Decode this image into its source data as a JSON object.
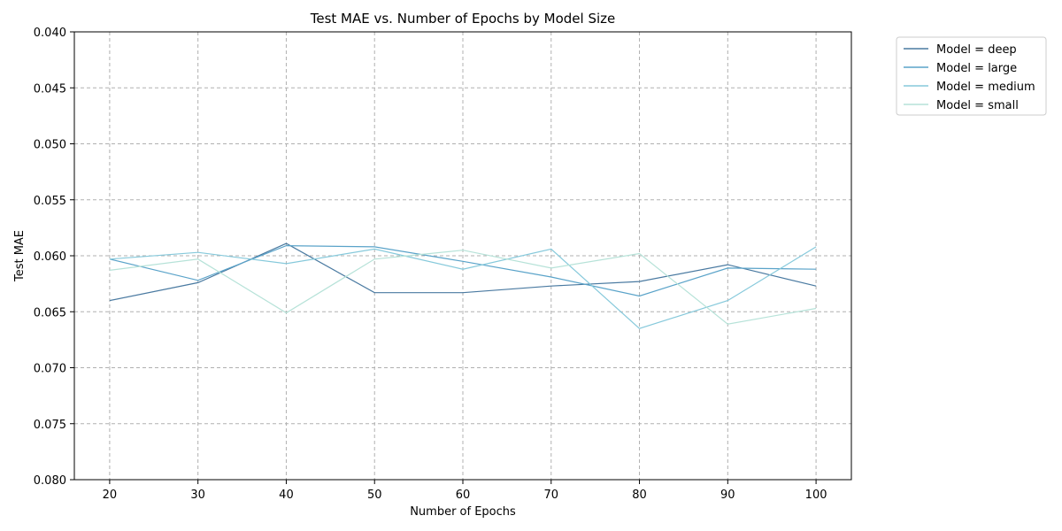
{
  "chart_data": {
    "type": "line",
    "title": "Test MAE vs. Number of Epochs by Model Size",
    "xlabel": "Number of Epochs",
    "ylabel": "Test MAE",
    "x": [
      20,
      30,
      40,
      50,
      60,
      70,
      80,
      90,
      100
    ],
    "xlim": [
      16,
      104
    ],
    "ylim": [
      0.08,
      0.04
    ],
    "y_inverted": true,
    "xticks": [
      "20",
      "30",
      "40",
      "50",
      "60",
      "70",
      "80",
      "90",
      "100"
    ],
    "xtick_values": [
      20,
      30,
      40,
      50,
      60,
      70,
      80,
      90,
      100
    ],
    "yticks": [
      "0.040",
      "0.045",
      "0.050",
      "0.055",
      "0.060",
      "0.065",
      "0.070",
      "0.075",
      "0.080"
    ],
    "ytick_values": [
      0.04,
      0.045,
      0.05,
      0.055,
      0.06,
      0.065,
      0.07,
      0.075,
      0.08
    ],
    "grid": true,
    "legend_placement": "outside-top-right",
    "series": [
      {
        "name": "Model = deep",
        "color": "#4a7aa1",
        "values": [
          0.064,
          0.0624,
          0.0589,
          0.0633,
          0.0633,
          0.0627,
          0.0623,
          0.0608,
          0.0627
        ]
      },
      {
        "name": "Model = large",
        "color": "#5aa3c9",
        "values": [
          0.0603,
          0.0622,
          0.0591,
          0.0592,
          0.0605,
          0.0619,
          0.0636,
          0.0611,
          0.0612
        ]
      },
      {
        "name": "Model = medium",
        "color": "#86c9db",
        "values": [
          0.0603,
          0.0597,
          0.0607,
          0.0594,
          0.0612,
          0.0594,
          0.0665,
          0.064,
          0.0592
        ]
      },
      {
        "name": "Model = small",
        "color": "#b6e2d8",
        "values": [
          0.0613,
          0.0603,
          0.0651,
          0.0603,
          0.0595,
          0.0611,
          0.0598,
          0.0661,
          0.0647
        ]
      }
    ]
  }
}
